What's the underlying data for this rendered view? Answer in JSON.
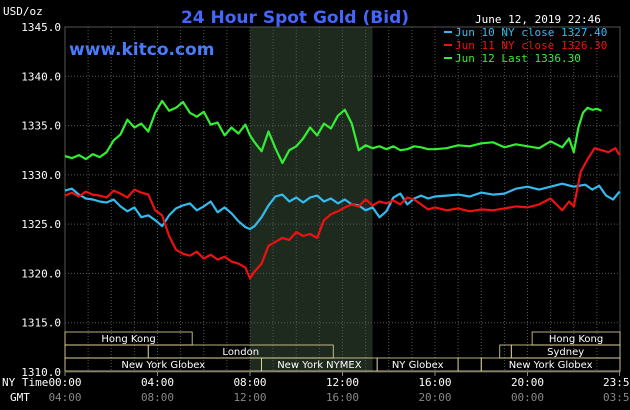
{
  "chart_data": {
    "type": "line",
    "title": "24 Hour Spot Gold (Bid)",
    "ylabel": "USD/oz",
    "watermark": "www.kitco.com",
    "timestamp": "June 12, 2019 22:46",
    "ylim": [
      1310,
      1345
    ],
    "yticks": [
      "1345.0",
      "1340.0",
      "1335.0",
      "1330.0",
      "1325.0",
      "1320.0",
      "1315.0",
      "1310.0"
    ],
    "ytick_values": [
      1345,
      1340,
      1335,
      1330,
      1325,
      1320,
      1315,
      1310
    ],
    "xlim": [
      0,
      24
    ],
    "x_row_label": "NY Time",
    "x2_row_label": "GMT",
    "xticks": [
      {
        "x": 0,
        "ny": "00:00",
        "gmt": "04:00"
      },
      {
        "x": 4,
        "ny": "04:00",
        "gmt": "08:00"
      },
      {
        "x": 8,
        "ny": "08:00",
        "gmt": "12:00"
      },
      {
        "x": 12,
        "ny": "12:00",
        "gmt": "16:00"
      },
      {
        "x": 16,
        "ny": "16:00",
        "gmt": "20:00"
      },
      {
        "x": 20,
        "ny": "20:00",
        "gmt": "00:00"
      },
      {
        "x": 23.98,
        "ny": "23:59",
        "gmt": "03:59"
      }
    ],
    "grid": true,
    "legend_placement": "top-right",
    "shaded_session": [
      8.0,
      13.3
    ],
    "sessions": [
      {
        "name": "Hong Kong",
        "rows": [
          {
            "start": 0,
            "end": 5.5,
            "row": 0
          }
        ]
      },
      {
        "name": "London",
        "rows": [
          {
            "start": 3.6,
            "end": 11.6,
            "row": 1
          }
        ]
      },
      {
        "name": "New York Globex",
        "rows": [
          {
            "start": 0,
            "end": 8.5,
            "row": 2
          }
        ]
      },
      {
        "name": "New York NYMEX",
        "rows": [
          {
            "start": 8.5,
            "end": 13.5,
            "row": 2
          }
        ]
      },
      {
        "name": "NY Globex",
        "rows": [
          {
            "start": 13.5,
            "end": 17.0,
            "row": 2
          }
        ]
      },
      {
        "name": "Hong Kong",
        "rows": [
          {
            "start": 20.2,
            "end": 24,
            "row": 0
          }
        ]
      },
      {
        "name": "Sydney",
        "rows": [
          {
            "start": 19.3,
            "end": 24,
            "row": 1
          }
        ]
      },
      {
        "name": "New York Globex",
        "rows": [
          {
            "start": 18.0,
            "end": 24,
            "row": 2
          }
        ]
      }
    ],
    "session_filler": [
      {
        "start": 0,
        "end": 3.6,
        "row": 1
      },
      {
        "start": 17.0,
        "end": 18.0,
        "row": 2
      },
      {
        "start": 18.8,
        "end": 19.3,
        "row": 1
      }
    ],
    "series": [
      {
        "name": "Jun 10 NY close 1327.40",
        "color": "#33bbee",
        "x": [
          0,
          0.3,
          0.6,
          0.9,
          1.2,
          1.5,
          1.8,
          2.1,
          2.4,
          2.7,
          3.0,
          3.3,
          3.6,
          3.9,
          4.2,
          4.5,
          4.8,
          5.1,
          5.4,
          5.7,
          6.0,
          6.3,
          6.6,
          6.9,
          7.2,
          7.5,
          7.8,
          8.0,
          8.2,
          8.5,
          8.8,
          9.1,
          9.4,
          9.7,
          10.0,
          10.3,
          10.6,
          10.9,
          11.2,
          11.5,
          11.8,
          12.1,
          12.4,
          12.7,
          13.0,
          13.3,
          13.6,
          13.9,
          14.2,
          14.5,
          14.8,
          15.1,
          15.4,
          15.7,
          16.0,
          16.5,
          17.0,
          17.5,
          18.0,
          18.5,
          19.0,
          19.5,
          20.0,
          20.5,
          21.0,
          21.5,
          22.0,
          22.5,
          22.8,
          23.1,
          23.4,
          23.7,
          23.98
        ],
        "values": [
          1328.4,
          1328.6,
          1328.0,
          1327.6,
          1327.5,
          1327.3,
          1327.2,
          1327.5,
          1326.8,
          1326.3,
          1326.7,
          1325.7,
          1325.9,
          1325.4,
          1324.8,
          1325.9,
          1326.6,
          1326.9,
          1327.1,
          1326.4,
          1326.8,
          1327.3,
          1326.2,
          1326.7,
          1326.1,
          1325.3,
          1324.7,
          1324.5,
          1324.8,
          1325.7,
          1326.9,
          1327.8,
          1328.0,
          1327.3,
          1327.7,
          1327.2,
          1327.7,
          1327.9,
          1327.3,
          1327.6,
          1327.1,
          1327.5,
          1327.0,
          1326.9,
          1326.4,
          1326.7,
          1325.7,
          1326.3,
          1327.7,
          1328.1,
          1327.0,
          1327.6,
          1327.9,
          1327.6,
          1327.8,
          1327.9,
          1328.0,
          1327.8,
          1328.2,
          1328.0,
          1328.1,
          1328.6,
          1328.8,
          1328.5,
          1328.8,
          1329.1,
          1328.8,
          1329.0,
          1328.5,
          1328.9,
          1327.9,
          1327.5,
          1328.3
        ]
      },
      {
        "name": "Jun 11 NY close 1326.30",
        "color": "#ee1111",
        "x": [
          0,
          0.3,
          0.6,
          0.9,
          1.2,
          1.5,
          1.8,
          2.1,
          2.4,
          2.7,
          3.0,
          3.3,
          3.6,
          3.9,
          4.2,
          4.5,
          4.8,
          5.1,
          5.4,
          5.7,
          6.0,
          6.3,
          6.6,
          6.9,
          7.2,
          7.5,
          7.8,
          8.0,
          8.2,
          8.5,
          8.8,
          9.1,
          9.4,
          9.7,
          10.0,
          10.3,
          10.6,
          10.9,
          11.2,
          11.5,
          11.8,
          12.1,
          12.4,
          12.7,
          13.0,
          13.3,
          13.6,
          13.9,
          14.2,
          14.5,
          14.8,
          15.1,
          15.4,
          15.7,
          16.0,
          16.5,
          17.0,
          17.5,
          18.0,
          18.5,
          19.0,
          19.5,
          20.0,
          20.5,
          21.0,
          21.5,
          21.8,
          22.0,
          22.3,
          22.6,
          22.9,
          23.2,
          23.5,
          23.8,
          23.98
        ],
        "values": [
          1327.9,
          1328.2,
          1327.8,
          1328.3,
          1328.0,
          1327.9,
          1327.7,
          1328.4,
          1328.1,
          1327.7,
          1328.5,
          1328.2,
          1328.0,
          1326.4,
          1325.9,
          1323.8,
          1322.4,
          1322.0,
          1321.8,
          1322.2,
          1321.5,
          1321.9,
          1321.4,
          1321.7,
          1321.2,
          1321.0,
          1320.6,
          1319.5,
          1320.2,
          1321.0,
          1322.8,
          1323.2,
          1323.6,
          1323.4,
          1324.2,
          1323.8,
          1324.0,
          1323.6,
          1325.4,
          1326.0,
          1326.3,
          1326.7,
          1327.0,
          1326.8,
          1327.5,
          1326.9,
          1327.3,
          1327.1,
          1327.4,
          1327.0,
          1327.7,
          1327.5,
          1327.0,
          1326.5,
          1326.7,
          1326.4,
          1326.6,
          1326.3,
          1326.5,
          1326.4,
          1326.6,
          1326.8,
          1326.7,
          1327.0,
          1327.6,
          1326.4,
          1327.3,
          1326.8,
          1330.3,
          1331.6,
          1332.7,
          1332.5,
          1332.3,
          1332.7,
          1332.0
        ]
      },
      {
        "name": "Jun 12 Last 1336.30",
        "color": "#33ee33",
        "x": [
          0,
          0.3,
          0.6,
          0.9,
          1.2,
          1.5,
          1.8,
          2.1,
          2.4,
          2.7,
          3.0,
          3.3,
          3.6,
          3.9,
          4.2,
          4.5,
          4.8,
          5.1,
          5.4,
          5.7,
          6.0,
          6.3,
          6.6,
          6.9,
          7.2,
          7.5,
          7.8,
          8.0,
          8.2,
          8.5,
          8.8,
          9.1,
          9.4,
          9.7,
          10.0,
          10.3,
          10.6,
          10.9,
          11.2,
          11.5,
          11.8,
          12.1,
          12.4,
          12.7,
          13.0,
          13.3,
          13.6,
          13.9,
          14.2,
          14.5,
          14.8,
          15.1,
          15.4,
          15.7,
          16.0,
          16.5,
          17.0,
          17.5,
          18.0,
          18.5,
          19.0,
          19.5,
          20.0,
          20.5,
          21.0,
          21.5,
          21.8,
          22.0,
          22.2,
          22.4,
          22.6,
          22.8,
          23.0,
          23.2
        ],
        "values": [
          1331.9,
          1331.7,
          1332.0,
          1331.6,
          1332.1,
          1331.8,
          1332.3,
          1333.5,
          1334.1,
          1335.6,
          1334.8,
          1335.2,
          1334.4,
          1336.3,
          1337.5,
          1336.5,
          1336.8,
          1337.4,
          1336.3,
          1335.9,
          1336.4,
          1335.1,
          1335.3,
          1334.0,
          1334.8,
          1334.2,
          1335.1,
          1334.0,
          1333.3,
          1332.4,
          1334.4,
          1332.7,
          1331.2,
          1332.5,
          1332.9,
          1333.7,
          1334.8,
          1334.0,
          1335.2,
          1334.7,
          1336.0,
          1336.6,
          1335.2,
          1332.5,
          1333.0,
          1332.7,
          1332.9,
          1332.6,
          1332.9,
          1332.5,
          1332.6,
          1332.9,
          1332.8,
          1332.6,
          1332.6,
          1332.7,
          1333.0,
          1332.9,
          1333.2,
          1333.3,
          1332.8,
          1333.1,
          1332.9,
          1332.7,
          1333.4,
          1332.8,
          1333.7,
          1332.3,
          1334.8,
          1336.3,
          1336.8,
          1336.6,
          1336.7,
          1336.5
        ]
      }
    ]
  }
}
